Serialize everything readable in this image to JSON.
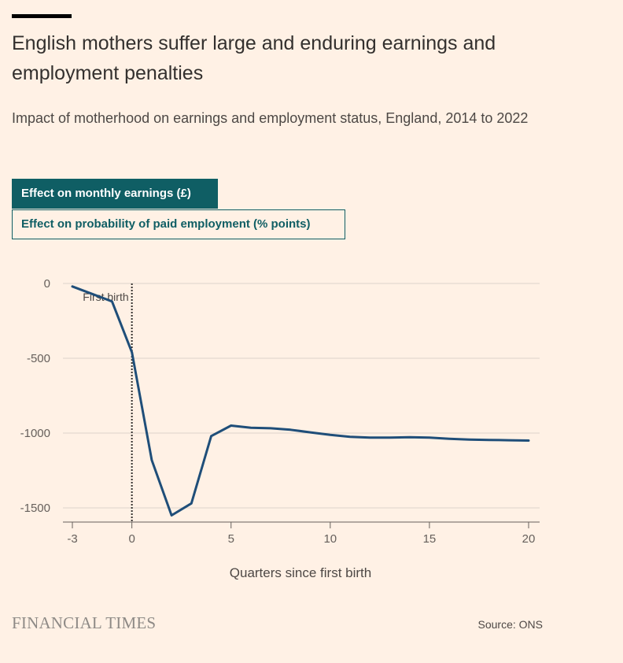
{
  "headline": "English mothers suffer large and enduring earnings and employment penalties",
  "subtitle": "Impact of motherhood on earnings and employment status, England, 2014 to 2022",
  "toggles": {
    "active": "Effect on monthly earnings (£)",
    "inactive": "Effect on probability of paid employment (% points)"
  },
  "footer": {
    "brand": "FINANCIAL TIMES",
    "source": "Source: ONS"
  },
  "colors": {
    "background": "#fff1e5",
    "line": "#1f4e79",
    "toggle": "#0f5e64"
  },
  "chart_data": {
    "type": "line",
    "title": "",
    "xlabel": "Quarters since first birth",
    "ylabel": "",
    "xlim": [
      -3,
      20
    ],
    "ylim": [
      -1600,
      0
    ],
    "x_ticks": [
      -3,
      0,
      5,
      10,
      15,
      20
    ],
    "x_tick_labels": [
      "-3",
      "0",
      "5",
      "10",
      "15",
      "20"
    ],
    "y_ticks": [
      0,
      -500,
      -1000,
      -1500
    ],
    "y_tick_labels": [
      "0",
      "-500",
      "-1000",
      "-1500"
    ],
    "grid": true,
    "annotation": {
      "label": "First birth",
      "x": 0
    },
    "series": [
      {
        "name": "Effect on monthly earnings (£)",
        "x": [
          -3,
          -2,
          -1,
          0,
          1,
          2,
          3,
          4,
          5,
          6,
          7,
          8,
          9,
          10,
          11,
          12,
          13,
          14,
          15,
          16,
          17,
          18,
          19,
          20
        ],
        "values": [
          -20,
          -70,
          -120,
          -460,
          -1180,
          -1550,
          -1470,
          -1020,
          -950,
          -965,
          -968,
          -978,
          -995,
          -1012,
          -1025,
          -1030,
          -1030,
          -1028,
          -1030,
          -1038,
          -1043,
          -1046,
          -1048,
          -1050
        ]
      }
    ]
  }
}
